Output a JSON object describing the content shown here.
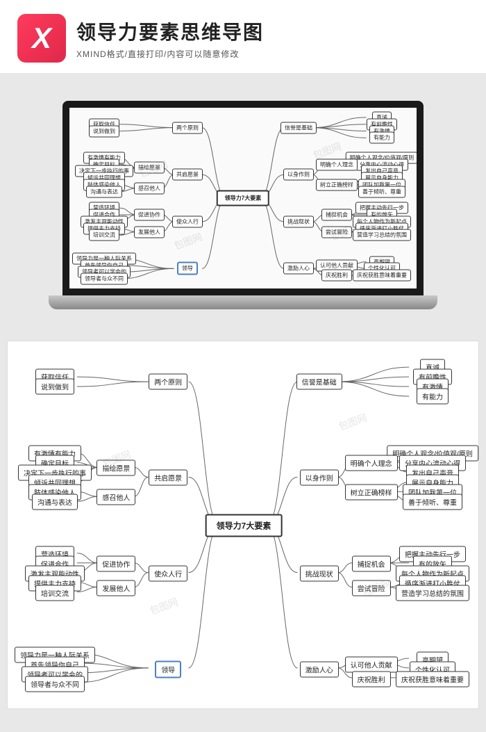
{
  "header": {
    "logo_text": "X",
    "title": "领导力要素思维导图",
    "subtitle": "XMIND格式/直接打印/内容可以随意修改"
  },
  "colors": {
    "page_bg": "#e8e8e8",
    "panel_bg": "#ffffff",
    "node_border": "#333333",
    "highlight_border": "#4a7fc7",
    "line": "#666666",
    "logo_start": "#ff3b5c",
    "logo_end": "#e0284a"
  },
  "mindmap": {
    "type": "mindmap",
    "center": "领导力7大要素",
    "left_branches": [
      {
        "label": "两个原则",
        "children": [
          "获取信任",
          "说到做到"
        ]
      },
      {
        "label": "共启愿景",
        "subs": [
          {
            "label": "描绘愿景",
            "children": [
              "有激情有能力",
              "确定目标",
              "决定下一步执行的事",
              "倾诉共同理想"
            ]
          },
          {
            "label": "感召他人",
            "children": [
              "肢体感染他人",
              "沟通与表达"
            ]
          }
        ]
      },
      {
        "label": "使众人行",
        "subs": [
          {
            "label": "促进协作",
            "children": [
              "营造环境",
              "促进合作",
              "激发主观能动性"
            ]
          },
          {
            "label": "发展他人",
            "children": [
              "提供主力支持",
              "培训交流"
            ]
          }
        ]
      },
      {
        "label": "领导",
        "highlight": true,
        "children": [
          "领导力是一种人际关系",
          "首先领导你自己",
          "领导者可以学会的",
          "领导者与众不同"
        ]
      }
    ],
    "right_branches": [
      {
        "label": "信誉是基础",
        "children": [
          "真诚",
          "有前瞻性",
          "有激情",
          "有能力"
        ]
      },
      {
        "label": "以身作则",
        "subs": [
          {
            "label": "明确个人理念",
            "children": [
              "明确个人观念/价值观/原则",
              "分享内心流动心得",
              "发出自己声音"
            ]
          },
          {
            "label": "树立正确榜样",
            "children": [
              "展示自身能力",
              "团队加我第一位",
              "善于倾听、尊重"
            ]
          }
        ]
      },
      {
        "label": "挑战现状",
        "subs": [
          {
            "label": "捕捉机会",
            "children": [
              "把握主动先行一步",
              "有的放矢",
              "每个人物作为新起点"
            ]
          },
          {
            "label": "尝试冒险",
            "children": [
              "循序渐进打小胜仗",
              "营造学习总结的氛围"
            ]
          }
        ]
      },
      {
        "label": "激励人心",
        "subs": [
          {
            "label": "认可他人贡献",
            "children": [
              "高期望",
              "个性化认可"
            ]
          },
          {
            "label": "庆祝胜利",
            "children": [
              "庆祝获胜意味着重要"
            ]
          }
        ]
      }
    ]
  },
  "watermark_text": "包图网"
}
